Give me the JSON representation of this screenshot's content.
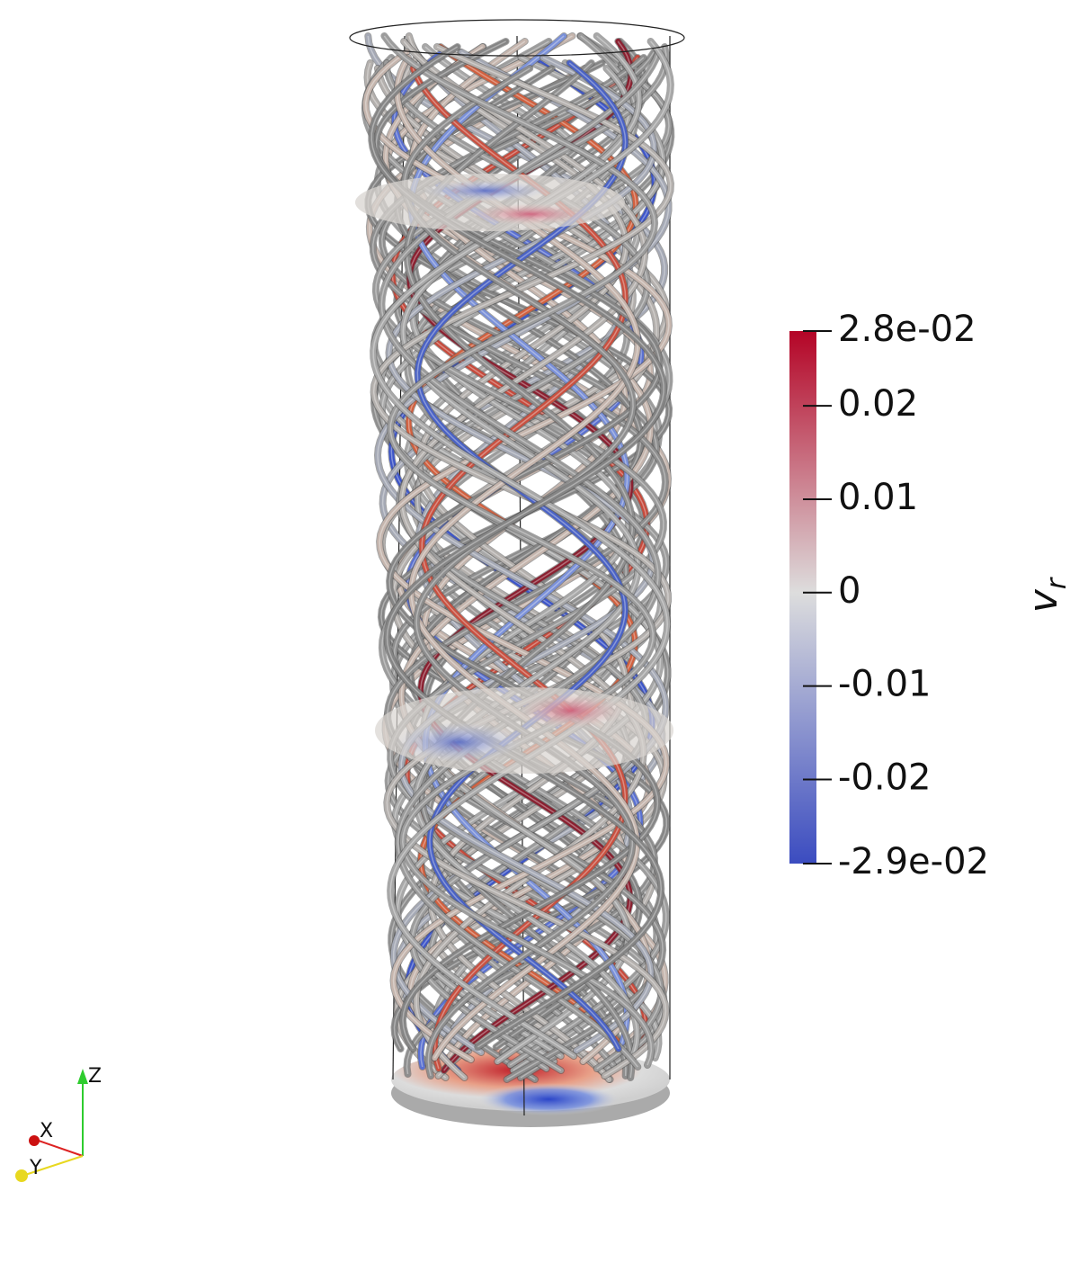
{
  "colorbar": {
    "title": "v",
    "title_subscript": "r",
    "range": [
      -0.029,
      0.028
    ],
    "ticks": [
      {
        "value": 0.028,
        "label": "2.8e-02"
      },
      0.02,
      0.01,
      0,
      -0.01,
      -0.02,
      {
        "value": -0.029,
        "label": "-2.9e-02"
      }
    ]
  },
  "orientation_axes": {
    "z": "Z",
    "x": "X",
    "y": "Y"
  }
}
